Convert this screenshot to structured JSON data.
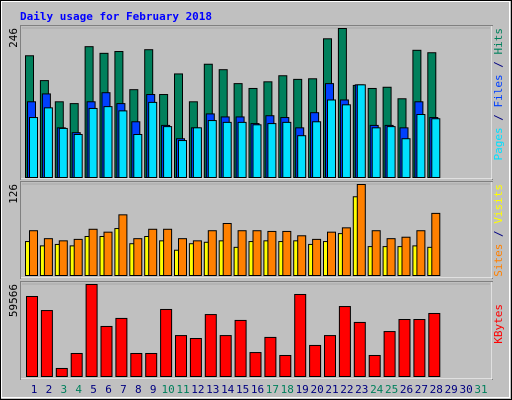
{
  "chart_data": [
    {
      "type": "bar",
      "title": "Daily usage for February 2018",
      "ylim": [
        0,
        246
      ],
      "yticks": [
        246
      ],
      "legend_separator": " / ",
      "series": [
        {
          "name": "Hits",
          "color": "#00805c",
          "values": [
            201,
            160,
            125,
            122,
            216,
            205,
            208,
            145,
            211,
            137,
            171,
            125,
            187,
            178,
            155,
            147,
            158,
            168,
            162,
            163,
            229,
            246,
            152,
            147,
            149,
            130,
            210,
            206,
            0,
            0,
            0
          ]
        },
        {
          "name": "Files",
          "color": "#0040ff",
          "values": [
            125,
            138,
            82,
            74,
            125,
            140,
            122,
            92,
            137,
            86,
            64,
            82,
            105,
            100,
            100,
            89,
            102,
            99,
            82,
            107,
            155,
            128,
            153,
            86,
            86,
            82,
            125,
            99,
            0,
            0,
            0
          ]
        },
        {
          "name": "Pages",
          "color": "#00e0ff",
          "values": [
            99,
            115,
            81,
            71,
            114,
            117,
            110,
            71,
            124,
            84,
            61,
            82,
            94,
            91,
            91,
            87,
            89,
            91,
            69,
            92,
            128,
            120,
            153,
            82,
            84,
            64,
            104,
            97,
            0,
            0,
            0
          ]
        }
      ]
    },
    {
      "type": "bar",
      "ylim": [
        0,
        126
      ],
      "yticks": [
        126
      ],
      "legend_separator": " / ",
      "series": [
        {
          "name": "Visits",
          "color": "#ffff00",
          "values": [
            47,
            41,
            43,
            41,
            54,
            54,
            65,
            44,
            54,
            48,
            35,
            44,
            46,
            48,
            39,
            47,
            48,
            47,
            48,
            43,
            47,
            58,
            109,
            40,
            40,
            40,
            41,
            39,
            0,
            0,
            0
          ]
        },
        {
          "name": "Sites",
          "color": "#ff8000",
          "values": [
            62,
            51,
            48,
            50,
            64,
            60,
            84,
            51,
            64,
            64,
            51,
            48,
            62,
            72,
            62,
            62,
            61,
            61,
            55,
            50,
            60,
            66,
            126,
            62,
            51,
            53,
            62,
            86,
            0,
            0,
            0
          ]
        }
      ]
    },
    {
      "type": "bar",
      "ylim": [
        0,
        59566
      ],
      "yticks": [
        59566
      ],
      "categories": [
        "1",
        "2",
        "3",
        "4",
        "5",
        "6",
        "7",
        "8",
        "9",
        "10",
        "11",
        "12",
        "13",
        "14",
        "15",
        "16",
        "17",
        "18",
        "19",
        "20",
        "21",
        "22",
        "23",
        "24",
        "25",
        "26",
        "27",
        "28",
        "29",
        "30",
        "31"
      ],
      "category_colors": [
        "#000080",
        "#000080",
        "#00805c",
        "#00805c",
        "#000080",
        "#000080",
        "#000080",
        "#000080",
        "#000080",
        "#00805c",
        "#00805c",
        "#000080",
        "#000080",
        "#000080",
        "#000080",
        "#000080",
        "#00805c",
        "#00805c",
        "#000080",
        "#000080",
        "#000080",
        "#000080",
        "#000080",
        "#00805c",
        "#00805c",
        "#000080",
        "#000080",
        "#000080",
        "#000080",
        "#000080",
        "#00805c"
      ],
      "series": [
        {
          "name": "KBytes",
          "color": "#ff0000",
          "values": [
            51800,
            42700,
            5200,
            14900,
            59566,
            32400,
            37600,
            14900,
            14900,
            43400,
            26500,
            24600,
            40100,
            26500,
            36300,
            15500,
            25300,
            13600,
            53100,
            20100,
            26500,
            45300,
            35000,
            13600,
            29100,
            36900,
            36900,
            40800,
            0,
            0,
            0
          ]
        }
      ]
    }
  ]
}
